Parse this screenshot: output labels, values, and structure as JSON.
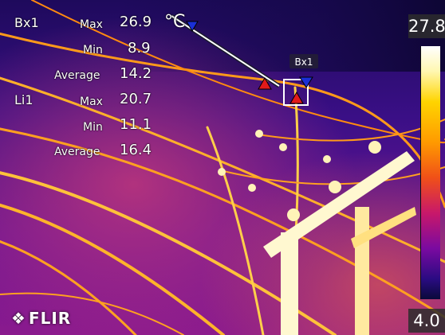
{
  "measurements": {
    "bx1": {
      "name": "Bx1",
      "max_label": "Max",
      "max": "26.9",
      "min_label": "Min",
      "min": "8.9",
      "avg_label": "Average",
      "avg": "14.2"
    },
    "li1": {
      "name": "Li1",
      "max_label": "Max",
      "max": "20.7",
      "min_label": "Min",
      "min": "11.1",
      "avg_label": "Average",
      "avg": "16.4"
    },
    "unit": "°C"
  },
  "box_label": "Bx1",
  "scale": {
    "max": "27.8",
    "min": "4.0"
  },
  "logo": {
    "text": "FLIR",
    "mark": "❖"
  },
  "colors": {
    "background": "#2a0a6e",
    "hot": "#ffd400",
    "warm": "#ff8a00",
    "hot_marker": "#e21a1a",
    "cold_marker": "#1a2fd6"
  },
  "icons": {
    "hot_marker": "red-triangle-icon",
    "cold_marker": "blue-triangle-icon"
  }
}
